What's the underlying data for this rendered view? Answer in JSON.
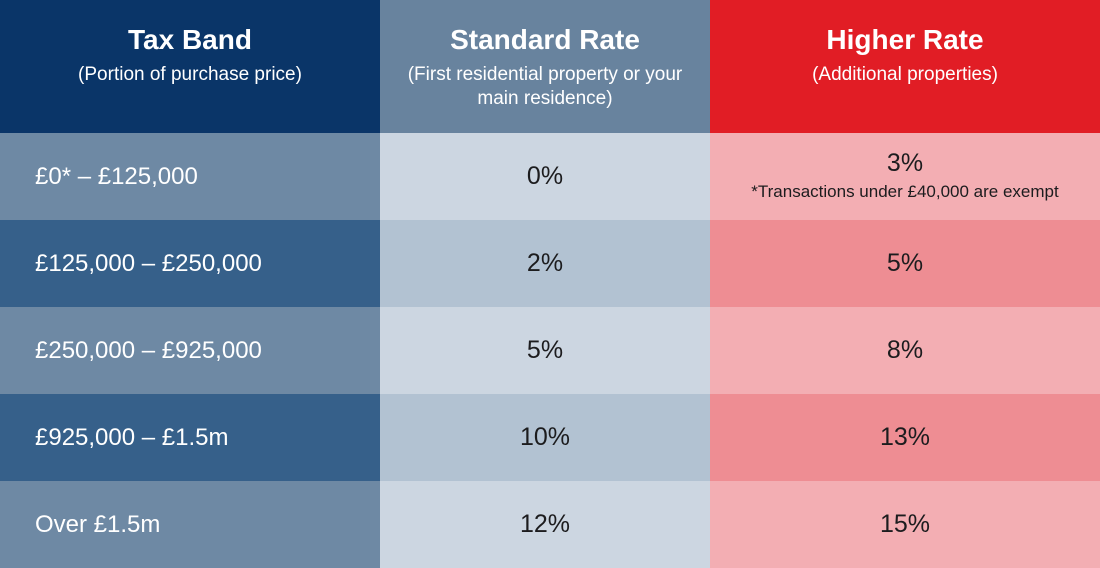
{
  "table": {
    "columns": [
      {
        "title": "Tax Band",
        "subtitle": "(Portion of purchase price)"
      },
      {
        "title": "Standard Rate",
        "subtitle": "(First residential property or your main residence)"
      },
      {
        "title": "Higher Rate",
        "subtitle": "(Additional properties)"
      }
    ],
    "rows": [
      {
        "band": "£0* – £125,000",
        "standard": "0%",
        "higher": "3%",
        "note": "*Transactions under £40,000 are exempt"
      },
      {
        "band": "£125,000 – £250,000",
        "standard": "2%",
        "higher": "5%"
      },
      {
        "band": "£250,000 – £925,000",
        "standard": "5%",
        "higher": "8%"
      },
      {
        "band": "£925,000 – £1.5m",
        "standard": "10%",
        "higher": "13%"
      },
      {
        "band": "Over £1.5m",
        "standard": "12%",
        "higher": "15%"
      }
    ]
  },
  "chart_data": {
    "type": "table",
    "columns": [
      "Tax Band (Portion of purchase price)",
      "Standard Rate (First residential property or your main residence)",
      "Higher Rate (Additional properties)"
    ],
    "rows": [
      [
        "£0* – £125,000",
        "0%",
        "3%"
      ],
      [
        "£125,000 – £250,000",
        "2%",
        "5%"
      ],
      [
        "£250,000 – £925,000",
        "5%",
        "8%"
      ],
      [
        "£925,000 – £1.5m",
        "10%",
        "13%"
      ],
      [
        "Over £1.5m",
        "12%",
        "15%"
      ]
    ],
    "footnote": "*Transactions under £40,000 are exempt"
  },
  "colors": {
    "header-navy": "#0a3568",
    "header-slate": "#68839e",
    "header-red": "#e11d25",
    "row-slate": "#6e89a4",
    "row-blue": "#36608a",
    "cell-blue-light": "#ccd6e1",
    "cell-blue-mid": "#b2c2d2",
    "cell-pink-light": "#f3aeb3",
    "cell-pink-mid": "#ee8d93",
    "text-dark": "#1c1c1e",
    "text-white": "#ffffff"
  }
}
